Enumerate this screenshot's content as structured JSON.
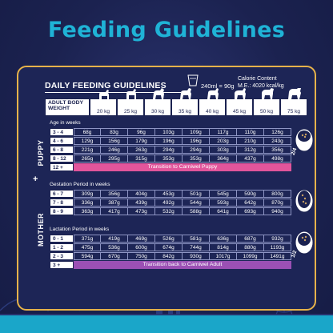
{
  "page_title": "Feeding Guidelines",
  "card": {
    "heading": "DAILY FEEDING GUIDELINES",
    "cup_text": "240ml = 90g",
    "calorie_line1": "Calorie Content",
    "calorie_line2": "M.E.: 4020 kcal/kg"
  },
  "weights": {
    "label": "ADULT BODY WEIGHT",
    "values": [
      "20 kg",
      "25 kg",
      "30 kg",
      "35 kg",
      "40 kg",
      "45 kg",
      "50 kg",
      "75 kg"
    ]
  },
  "puppy": {
    "side_label": "PUPPY",
    "section_label": "Age in weeks",
    "rows": [
      {
        "label": "3 - 4",
        "values": [
          "68g",
          "83g",
          "96g",
          "103g",
          "109g",
          "117g",
          "110g",
          "126g"
        ]
      },
      {
        "label": "4 - 6",
        "values": [
          "129g",
          "156g",
          "179g",
          "196g",
          "196g",
          "203g",
          "210g",
          "243g"
        ]
      },
      {
        "label": "6 - 8",
        "values": [
          "221g",
          "246g",
          "263g",
          "294g",
          "294g",
          "303g",
          "312g",
          "356g"
        ]
      },
      {
        "label": "8 - 12",
        "values": [
          "265g",
          "295g",
          "315g",
          "353g",
          "353g",
          "364g",
          "437g",
          "498g"
        ]
      }
    ],
    "transition_label": "12 +",
    "transition_text": "Transition to Carniwel Puppy"
  },
  "mother": {
    "side_label": "MOTHER",
    "plus": "+",
    "gestation_label": "Gestation Period in weeks",
    "gestation_rows": [
      {
        "label": "6 - 7",
        "values": [
          "309g",
          "356g",
          "404g",
          "453g",
          "501g",
          "545g",
          "590g",
          "800g"
        ]
      },
      {
        "label": "7 - 8",
        "values": [
          "336g",
          "387g",
          "439g",
          "492g",
          "544g",
          "593g",
          "642g",
          "870g"
        ]
      },
      {
        "label": "8 - 9",
        "values": [
          "363g",
          "417g",
          "473g",
          "532g",
          "588g",
          "641g",
          "693g",
          "940g"
        ]
      }
    ],
    "lactation_label": "Lactation Period in weeks",
    "lactation_rows": [
      {
        "label": "0 - 1",
        "values": [
          "371g",
          "419g",
          "469g",
          "526g",
          "581g",
          "636g",
          "687g",
          "932g"
        ]
      },
      {
        "label": "1 - 2",
        "values": [
          "475g",
          "536g",
          "600g",
          "674g",
          "744g",
          "814g",
          "880g",
          "1193g"
        ]
      },
      {
        "label": "2 - 3",
        "values": [
          "594g",
          "670g",
          "750g",
          "842g",
          "930g",
          "1017g",
          "1099g",
          "1491g"
        ]
      }
    ],
    "transition_label": "3 +",
    "transition_text": "Transition back to Carniwel Adult"
  },
  "bowls": {
    "puppy_bowl_text": "2/4",
    "mother_bowl1_text": "",
    "mother_bowl2_text": "1/2"
  },
  "colors": {
    "background": "#1b2250",
    "title": "#1fb3d6",
    "card_border": "#e6b24a",
    "transition_puppy": "#e2559b",
    "transition_adult": "#9b50b4",
    "ground": "#1aa6c9"
  }
}
